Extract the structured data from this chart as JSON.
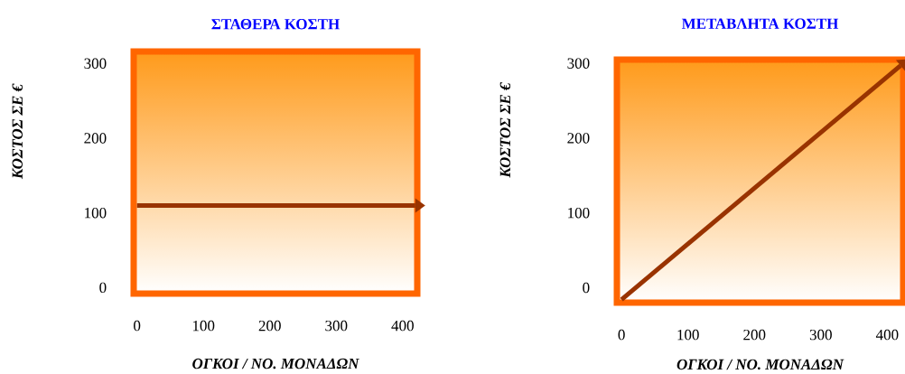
{
  "chart_data": [
    {
      "type": "line",
      "title": "ΣΤΑΘΕΡΑ ΚΟΣΤΗ",
      "xlabel": "ΟΓΚΟΙ / ΝΟ. ΜΟΝΑΔΩΝ",
      "ylabel": "ΚΟΣΤΟΣ ΣΕ €",
      "x": [
        0,
        419
      ],
      "values": [
        110,
        110
      ],
      "color": "#993300",
      "xlim": [
        -5,
        422
      ],
      "ylim": [
        -8,
        316
      ],
      "xticks": [
        0,
        100,
        200,
        300,
        400
      ],
      "yticks": [
        0,
        100,
        200,
        300
      ],
      "grid": false,
      "marker": "none",
      "line_style": "solid"
    },
    {
      "type": "line",
      "title": "ΜΕΤΑΒΛΗΤΑ ΚΟΣΤΗ",
      "xlabel": "ΟΓΚΟΙ / ΝΟ. ΜΟΝΑΔΩΝ",
      "ylabel": "ΚΟΣΤΟΣ ΣΕ €",
      "x": [
        0,
        420
      ],
      "values": [
        -16,
        297
      ],
      "color": "#993300",
      "xlim": [
        -7,
        424
      ],
      "ylim": [
        -20,
        305
      ],
      "xticks": [
        0,
        100,
        200,
        300,
        400
      ],
      "yticks": [
        0,
        100,
        200,
        300
      ],
      "grid": false,
      "marker": "none",
      "line_style": "solid"
    }
  ]
}
